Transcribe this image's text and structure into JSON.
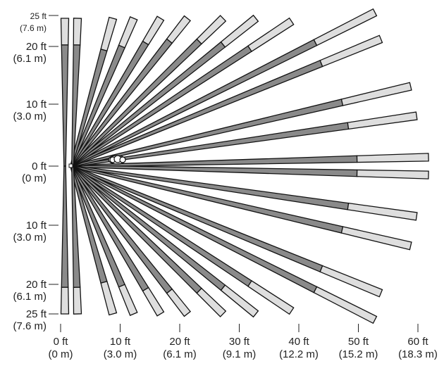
{
  "colors": {
    "near_zone": "#8a8a8a",
    "far_zone": "#dedede",
    "outline": "#111111",
    "sensor": "#ffffff",
    "text": "#222222"
  },
  "sensor_icon": "motion-sensor-icon",
  "y_axis": {
    "ticks": [
      {
        "ft": "25 ft",
        "m": "(7.6 m)",
        "value": 25,
        "small": true
      },
      {
        "ft": "20 ft",
        "m": "(6.1 m)",
        "value": 20
      },
      {
        "ft": "10 ft",
        "m": "(3.0 m)",
        "value": 10
      },
      {
        "ft": "0 ft",
        "m": "(0 m)",
        "value": 0
      },
      {
        "ft": "10 ft",
        "m": "(3.0 m)",
        "value": -10
      },
      {
        "ft": "20 ft",
        "m": "(6.1 m)",
        "value": -20
      },
      {
        "ft": "25 ft",
        "m": "(7.6 m)",
        "value": -25
      }
    ]
  },
  "x_axis": {
    "ticks": [
      {
        "ft": "0 ft",
        "m": "(0 m)",
        "value": 0
      },
      {
        "ft": "10 ft",
        "m": "(3.0 m)",
        "value": 10
      },
      {
        "ft": "20 ft",
        "m": "(6.1 m)",
        "value": 20
      },
      {
        "ft": "30 ft",
        "m": "(9.1 m)",
        "value": 30
      },
      {
        "ft": "40 ft",
        "m": "(12.2 m)",
        "value": 40
      },
      {
        "ft": "50 ft",
        "m": "(15.2 m)",
        "value": 50
      },
      {
        "ft": "60 ft",
        "m": "(18.3 m)",
        "value": 60
      }
    ]
  },
  "beams": [
    {
      "x": 60,
      "y": 1.5,
      "near": 48
    },
    {
      "x": 60,
      "y": -1.5,
      "near": 48
    },
    {
      "x": 58,
      "y": 8.5,
      "near": 46.5
    },
    {
      "x": 58,
      "y": -8.5,
      "near": 46.5
    },
    {
      "x": 57,
      "y": 13.5,
      "near": 45.5
    },
    {
      "x": 57,
      "y": -13.5,
      "near": 45.5
    },
    {
      "x": 52,
      "y": 21.5,
      "near": 42
    },
    {
      "x": 52,
      "y": -21.5,
      "near": 42
    },
    {
      "x": 51,
      "y": 26,
      "near": 41
    },
    {
      "x": 51,
      "y": -26,
      "near": 41
    },
    {
      "x": 37,
      "y": 24.5,
      "near": 30
    },
    {
      "x": 37,
      "y": -24.5,
      "near": 30
    },
    {
      "x": 31,
      "y": 25,
      "near": 25.5
    },
    {
      "x": 31,
      "y": -25,
      "near": 25.5
    },
    {
      "x": 25.5,
      "y": 25,
      "near": 21.5
    },
    {
      "x": 25.5,
      "y": -25,
      "near": 21.5
    },
    {
      "x": 19.5,
      "y": 25,
      "near": 16.5
    },
    {
      "x": 19.5,
      "y": -25,
      "near": 16.5
    },
    {
      "x": 15,
      "y": 25,
      "near": 12.5
    },
    {
      "x": 15,
      "y": -25,
      "near": 12.5
    },
    {
      "x": 10.5,
      "y": 25,
      "near": 8.5
    },
    {
      "x": 10.5,
      "y": -25,
      "near": 8.5
    },
    {
      "x": 7,
      "y": 25,
      "near": 5.5
    },
    {
      "x": 7,
      "y": -25,
      "near": 5.5
    },
    {
      "x": 2,
      "y": 25,
      "near": 1.7
    },
    {
      "x": 2,
      "y": -25,
      "near": 1.7
    },
    {
      "x": 0,
      "y": 25,
      "near": 0
    },
    {
      "x": 0,
      "y": -25,
      "near": 0
    }
  ]
}
